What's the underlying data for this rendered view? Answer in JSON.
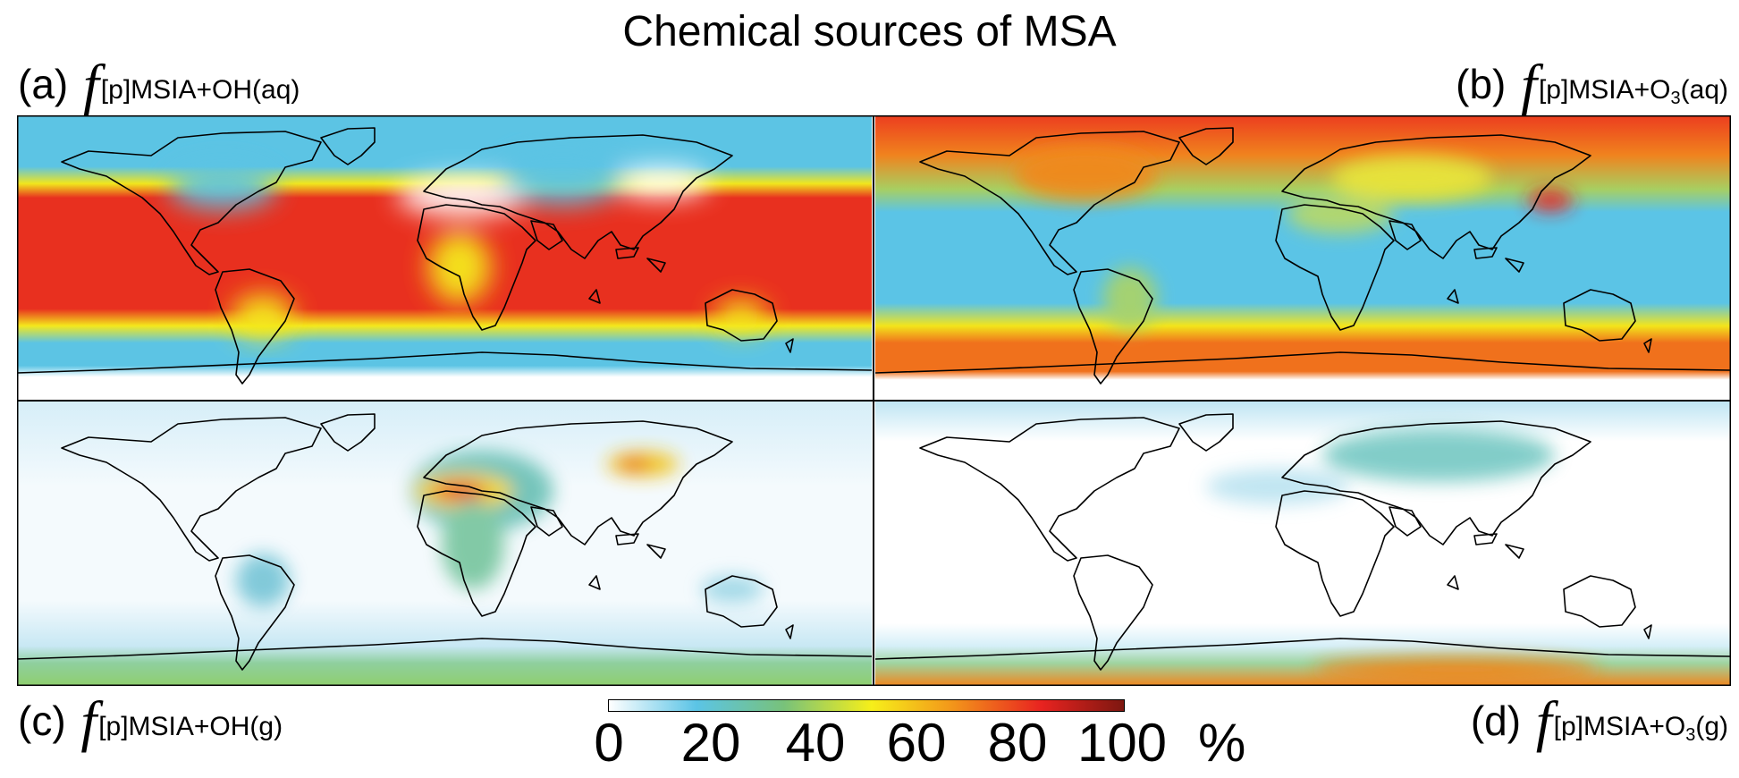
{
  "title": "Chemical sources of MSA",
  "panels": [
    {
      "id": "a",
      "label": "(a)",
      "f": "f",
      "sub_main": "[p]MSIA+OH(aq)",
      "sub_pre": "",
      "sub_num": "",
      "sub_post": ""
    },
    {
      "id": "b",
      "label": "(b)",
      "f": "f",
      "sub_main": "",
      "sub_pre": "[p]MSIA+O",
      "sub_num": "3",
      "sub_post": "(aq)"
    },
    {
      "id": "c",
      "label": "(c)",
      "f": "f",
      "sub_main": "[p]MSIA+OH(g)",
      "sub_pre": "",
      "sub_num": "",
      "sub_post": ""
    },
    {
      "id": "d",
      "label": "(d)",
      "f": "f",
      "sub_main": "",
      "sub_pre": "[p]MSIA+O",
      "sub_num": "3",
      "sub_post": "(g)"
    }
  ],
  "colorbar": {
    "ticks": [
      "0",
      "20",
      "40",
      "60",
      "80",
      "100"
    ],
    "unit": "%",
    "stops": [
      "#ffffff",
      "#5bc4e6",
      "#78c27a",
      "#f6ef1a",
      "#f39a1a",
      "#e82320",
      "#7d1710"
    ]
  }
}
